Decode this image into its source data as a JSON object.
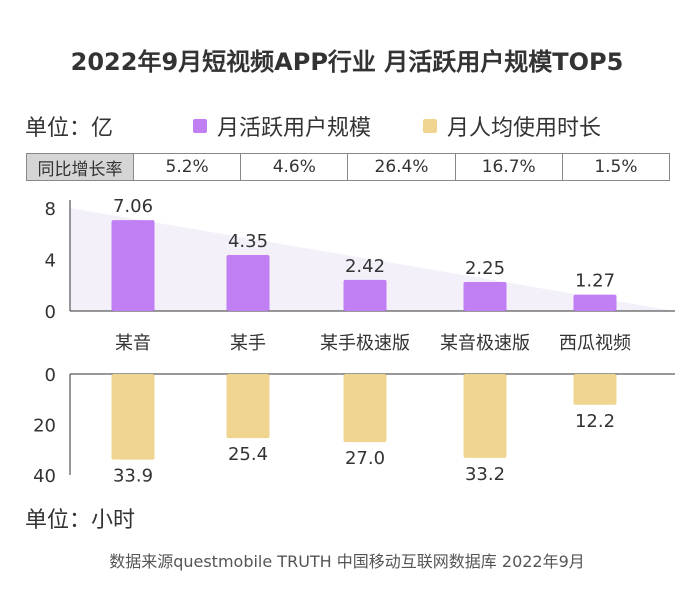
{
  "title": "2022年9月短视频APP行业 月活跃用户规模TOP5",
  "legend": {
    "unit_top": "单位：亿",
    "series_mau": "月活跃用户规模",
    "series_time": "月人均使用时长"
  },
  "growth_table": {
    "header": "同比增长率",
    "values": [
      "5.2%",
      "4.6%",
      "26.4%",
      "16.7%",
      "1.5%"
    ]
  },
  "unit_bottom": "单位：小时",
  "source": "数据来源questmobile TRUTH 中国移动互联网数据库 2022年9月",
  "colors": {
    "mau": "#c080f4",
    "time": "#f0d591",
    "triangle": "#f3f0fa",
    "axis": "#333333"
  },
  "chart_data": [
    {
      "type": "bar",
      "categories": [
        "某音",
        "某手",
        "某手极速版",
        "某音极速版",
        "西瓜视频"
      ],
      "series": [
        {
          "name": "月活跃用户规模",
          "values": [
            7.06,
            4.35,
            2.42,
            2.25,
            1.27
          ]
        }
      ],
      "value_labels": [
        "7.06",
        "4.35",
        "2.42",
        "2.25",
        "1.27"
      ],
      "y_ticks": [
        "8",
        "4",
        "0"
      ],
      "ylim": [
        0,
        8
      ],
      "ylabel": "单位：亿"
    },
    {
      "type": "bar",
      "orientation": "downward",
      "categories": [
        "某音",
        "某手",
        "某手极速版",
        "某音极速版",
        "西瓜视频"
      ],
      "series": [
        {
          "name": "月人均使用时长",
          "values": [
            33.9,
            25.4,
            27.0,
            33.2,
            12.2
          ]
        }
      ],
      "value_labels": [
        "33.9",
        "25.4",
        "27.0",
        "33.2",
        "12.2"
      ],
      "y_ticks": [
        "0",
        "20",
        "40"
      ],
      "ylim": [
        0,
        40
      ],
      "ylabel": "单位：小时"
    }
  ]
}
